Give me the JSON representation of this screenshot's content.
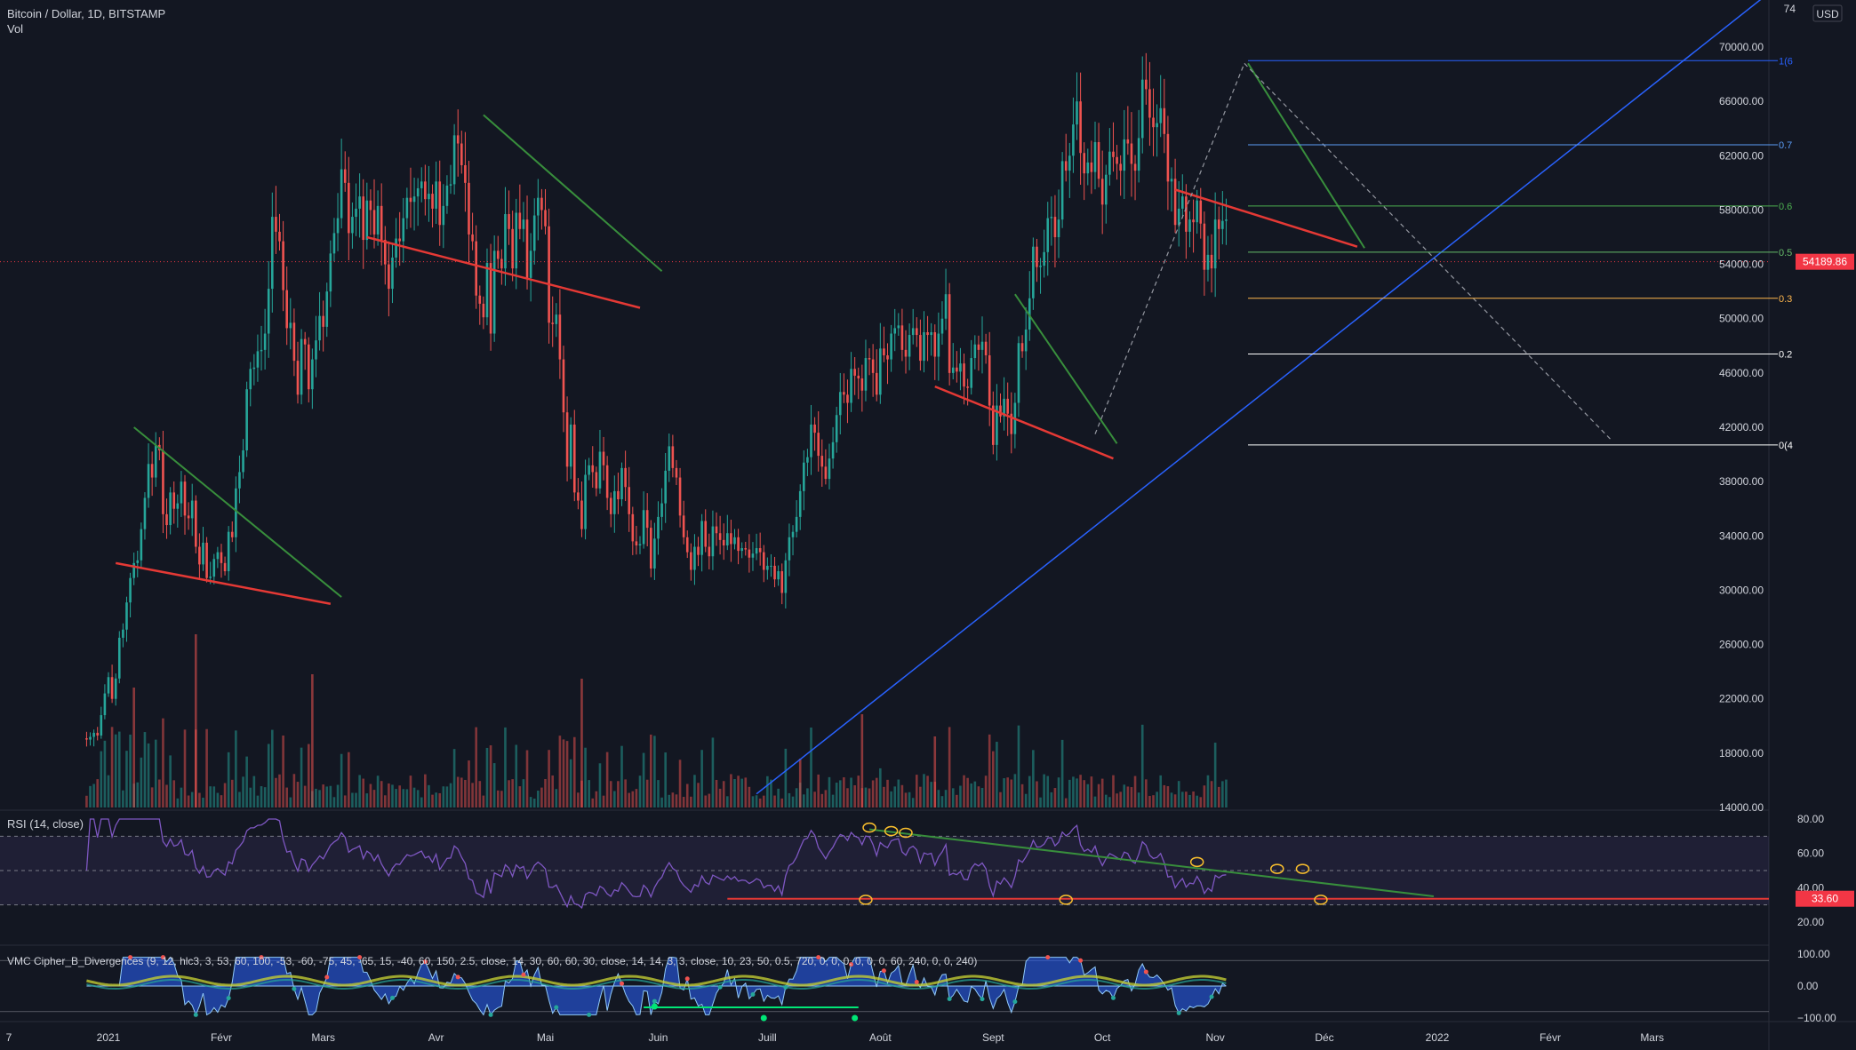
{
  "header": {
    "symbol_line": "Bitcoin / Dollar, 1D, BITSTAMP",
    "volume_label": "Vol",
    "currency": "USD"
  },
  "price_axis": {
    "ticks": [
      "70000.00",
      "66000.00",
      "62000.00",
      "58000.00",
      "54000.00",
      "50000.00",
      "46000.00",
      "42000.00",
      "38000.00",
      "34000.00",
      "30000.00",
      "26000.00",
      "22000.00",
      "18000.00",
      "14000.00"
    ],
    "top_label": "74",
    "last_price": "54189.86",
    "last_price_color": "#f23645"
  },
  "fib_labels": [
    "1(6",
    "0.7",
    "0.6",
    "0.5",
    "0.3",
    "0.2",
    "0(4"
  ],
  "rsi": {
    "title": "RSI (14, close)",
    "ticks": [
      "80.00",
      "60.00",
      "40.00",
      "20.00"
    ],
    "last_value": "33.60"
  },
  "vmc": {
    "title": "VMC Cipher_B_Divergences (9, 12, hlc3, 3, 53, 60, 100, -53, -60, -75, 45, -65, 15, -40, 60, 150, 2.5, close, 14, 30, 60, 60, 30, close, 14, 14, 3, 3, close, 10, 23, 50, 0.5, 720, 0, 0, 0, 0, 0, 0, 60, 240, 0, 0, 240)",
    "ticks": [
      "100.00",
      "0.00",
      "−100.00"
    ]
  },
  "time_axis": [
    "7",
    "2021",
    "Févr",
    "Mars",
    "Avr",
    "Mai",
    "Juin",
    "Juill",
    "Août",
    "Sept",
    "Oct",
    "Nov",
    "Déc",
    "2022",
    "Févr",
    "Mars"
  ],
  "colors": {
    "background": "#131722",
    "up": "#26a69a",
    "down": "#ef5350",
    "trend_red": "#e53935",
    "trend_green": "#388e3c",
    "trend_blue": "#2962ff",
    "rsi_line": "#7e57c2"
  },
  "chart_data": {
    "type": "candlestick",
    "title": "Bitcoin / Dollar, 1D, BITSTAMP",
    "x_range": [
      "2020-12-26",
      "2022-03-01"
    ],
    "y_range": [
      14000,
      74000
    ],
    "daily_closes": [
      [
        19000,
        19200,
        19500,
        19300,
        20800,
        22400,
        23600,
        22000,
        23500,
        26500,
        27100,
        29100,
        30900,
        32000,
        32200,
        34500,
        36800,
        39300,
        38300,
        40700,
        40300,
        35600,
        34800,
        37200,
        36000,
        36400,
        38000,
        35500,
        35300,
        36600,
        33200,
        31900,
        33500,
        30900,
        31000,
        32300,
        32800,
        32000,
        31400,
        34300,
        33900,
        37500,
        38700,
        40300,
        44800,
        46300,
        46400,
        47600,
        47700,
        48900,
        52200,
        57500,
        56400,
        55700,
        52100,
        49300,
        49700,
        46900,
        44400,
        48500,
        48100,
        44800,
        47000,
        48400,
        50200,
        49400,
        52000,
        54800,
        56300,
        57400,
        61000,
        60000,
        56300,
        57500,
        58100,
        59000,
        55800,
        58700,
        58000,
        56200,
        58300,
        55800,
        54000,
        52200,
        54500,
        55900,
        55700,
        57400,
        58900,
        58600,
        59000,
        59600,
        60100,
        58800,
        59200,
        58100,
        60100,
        56900,
        58300,
        59800,
        59900,
        63500,
        62900,
        61300,
        60000,
        56200,
        55700,
        51700,
        51100,
        50100,
        54100,
        48900,
        55000,
        54400,
        53700,
        57700,
        56600,
        53700,
        57800,
        56600,
        57300,
        53000,
        55000,
        57600,
        58900,
        58000,
        56800,
        49700,
        49600,
        50300,
        47000,
        43100,
        39100,
        42200,
        37200,
        36600,
        34500,
        38500,
        39200,
        38700,
        37500,
        40200,
        39200,
        36800,
        35600,
        37300,
        36700,
        39000,
        37600,
        35600,
        33600,
        33300,
        33400,
        35900,
        34600,
        31600,
        33800,
        35400,
        36400,
        38800,
        40600,
        39000,
        38300,
        35500,
        33900,
        32800,
        31500,
        33200,
        32600,
        35100,
        33200,
        32500,
        34700,
        34200,
        33700,
        33300,
        34200,
        33400,
        33900,
        32900,
        33100,
        33000,
        32400,
        32700,
        33100,
        32800,
        31500,
        31800,
        31800,
        30800,
        31400,
        29800,
        32200,
        33900,
        34300,
        35400,
        37300,
        39400,
        39800,
        42200,
        41600,
        39900,
        39100,
        38200,
        39700,
        40900,
        42900,
        44600,
        44400,
        43800,
        46300,
        45800,
        45600,
        44700,
        47100,
        47000,
        46000,
        44400,
        47800,
        47300,
        47000,
        48900,
        49300,
        49500,
        47700,
        47200,
        48800,
        49300,
        48800,
        46900,
        49000,
        48800,
        49000,
        47200,
        48900,
        50000,
        51800,
        46000,
        46400,
        46100,
        46700,
        45000,
        44900,
        47100,
        48100,
        47700,
        48300,
        47300,
        43600,
        40700,
        43600,
        42800,
        44100,
        43000,
        41500,
        43800,
        48200,
        47600,
        49200,
        51500,
        55300,
        53800,
        53900,
        54900,
        57400,
        57500,
        56000,
        57300,
        61600,
        60900,
        62000,
        64300,
        66000,
        62200,
        60700,
        61500,
        60800,
        63000,
        60300,
        58400,
        60600,
        62300,
        61900,
        61400,
        60900,
        63200,
        62900,
        61400,
        60900,
        63300,
        67600,
        66900,
        64800,
        64100,
        64400,
        65500,
        63600,
        60100,
        60300,
        56900,
        58100,
        59000,
        56400,
        57300,
        57100,
        58700,
        57000,
        53600,
        54700,
        53700,
        57300
      ],
      [
        56600,
        57200,
        57300
      ]
    ],
    "fib_levels": {
      "1(6": 69000,
      "0.7": 62800,
      "0.6": 58300,
      "0.5": 54900,
      "0.3": 51500,
      "0.2": 47400,
      "0(4": 40700
    },
    "volume_peaks": [
      60,
      195,
      145,
      150,
      135,
      105,
      80
    ]
  }
}
